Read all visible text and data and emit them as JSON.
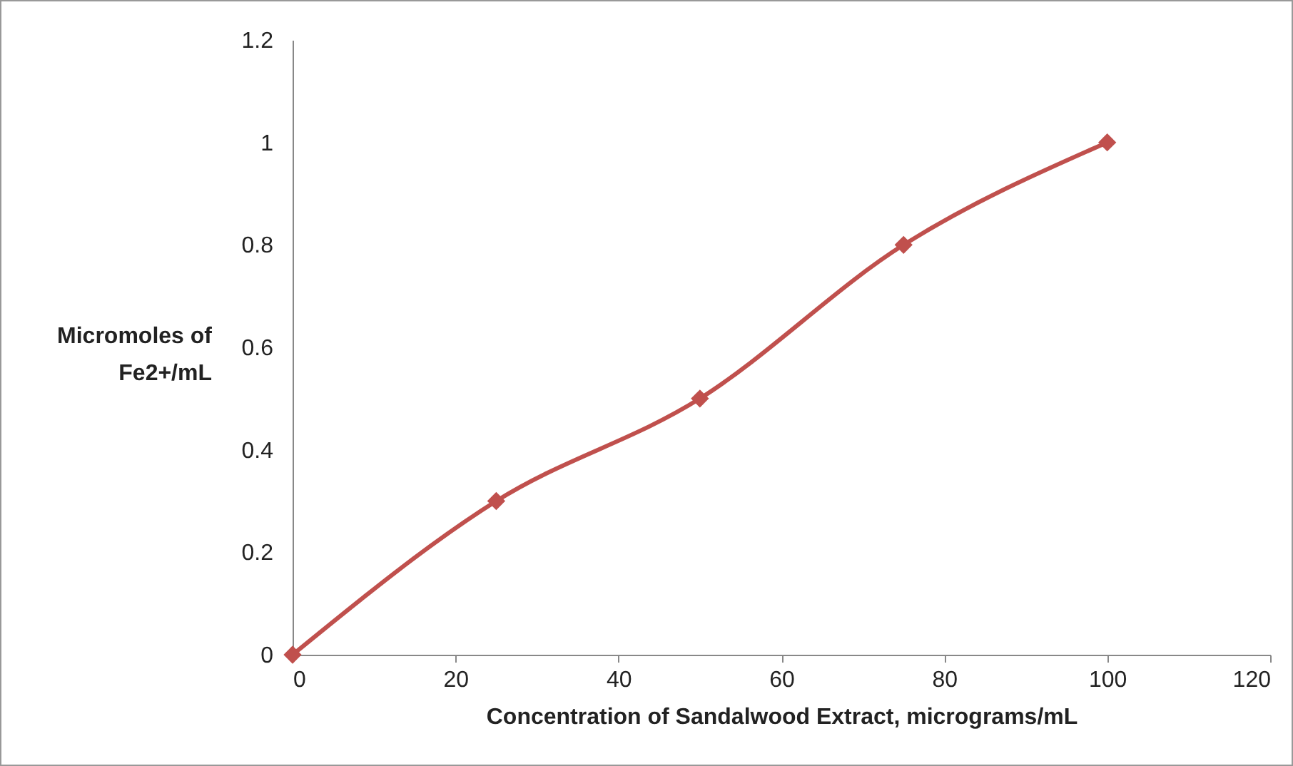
{
  "chart_data": {
    "type": "line",
    "xlabel": "Concentration of Sandalwood Extract, micrograms/mL",
    "ylabel": "Micromoles of Fe2+/mL",
    "x": [
      0,
      25,
      50,
      75,
      100
    ],
    "series": [
      {
        "color": "#c0504d",
        "values": [
          0,
          0.3,
          0.5,
          0.8,
          1
        ]
      }
    ],
    "xlim": [
      0,
      120
    ],
    "xticks": [
      0,
      20,
      40,
      60,
      80,
      100,
      120
    ],
    "ylim": [
      0,
      1.2
    ],
    "yticks": [
      0,
      0.2,
      0.4,
      0.6,
      0.8,
      1,
      1.2
    ],
    "grid": false,
    "marker": "diamond",
    "line_style": "solid"
  }
}
